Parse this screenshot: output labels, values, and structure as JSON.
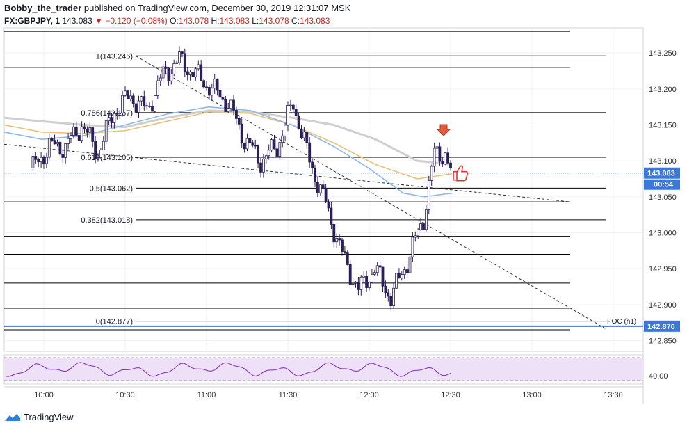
{
  "header": {
    "author": "Bobby_the_trader",
    "published": "published on TradingView.com, December 30, 2019 12:31:07 MSK"
  },
  "ohlc": {
    "symbol": "FX:GBPJPY, 1",
    "price": "143.083",
    "change": "−0.120 (−0.08%)",
    "o_label": "O:",
    "o": "143.078",
    "h_label": "H:",
    "h": "143.083",
    "l_label": "L:",
    "l": "143.078",
    "c_label": "C:",
    "c": "143.083"
  },
  "footer": {
    "brand": "TradingView"
  },
  "colors": {
    "candle": "#2b1f55",
    "fib": "#000000",
    "trend": "#333333",
    "ma_fast": "#8fb8e8",
    "ma_mid": "#e7c27a",
    "ma_slow": "#cfcfcf",
    "poc": "#3c78d8",
    "rsi_line": "#7b2cbf",
    "rsi_band": "#ede0f7",
    "marker_red": "#e05a3c",
    "price_badge": "#3c78d8"
  },
  "chart_data": {
    "type": "line",
    "title": "",
    "symbol": "GBPJPY",
    "timeframe": "1",
    "x_ticks": [
      "10:00",
      "10:30",
      "11:00",
      "11:30",
      "12:00",
      "12:30",
      "13:00",
      "13:30"
    ],
    "y_ticks": [
      "143.250",
      "143.200",
      "143.150",
      "143.100",
      "143.050",
      "143.000",
      "142.950",
      "142.900",
      "142.850"
    ],
    "ylim": [
      142.84,
      143.28
    ],
    "fib_levels": [
      {
        "ratio": "1",
        "label": "1(143.246)",
        "value": 143.246
      },
      {
        "ratio": "0.786",
        "label": "0.786(143.167)",
        "value": 143.167
      },
      {
        "ratio": "0.618",
        "label": "0.618(143.105)",
        "value": 143.105
      },
      {
        "ratio": "0.5",
        "label": "0.5(143.062)",
        "value": 143.062
      },
      {
        "ratio": "0.382",
        "label": "0.382(143.018)",
        "value": 143.018
      },
      {
        "ratio": "0",
        "label": "0(142.877)",
        "value": 142.877
      }
    ],
    "extra_levels": [
      143.28,
      143.23,
      143.043,
      142.995,
      142.97,
      142.93,
      142.895,
      142.865
    ],
    "poc": {
      "label": "POC (h1)",
      "value": 142.87
    },
    "last_price": {
      "value": "143.083",
      "countdown": "00:54"
    },
    "poc_badge": "142.870",
    "price_series": {
      "name": "",
      "x": [
        "09:56",
        "10:02",
        "10:08",
        "10:14",
        "10:20",
        "10:26",
        "10:32",
        "10:38",
        "10:44",
        "10:50",
        "10:56",
        "11:02",
        "11:08",
        "11:14",
        "11:20",
        "11:26",
        "11:32",
        "11:38",
        "11:44",
        "11:50",
        "11:56",
        "12:02",
        "12:08",
        "12:14",
        "12:20",
        "12:24",
        "12:28",
        "12:30"
      ],
      "values": [
        143.09,
        143.12,
        143.12,
        143.15,
        143.11,
        143.17,
        143.19,
        143.17,
        143.22,
        143.24,
        143.22,
        143.2,
        143.18,
        143.13,
        143.1,
        143.12,
        143.18,
        143.1,
        143.04,
        142.97,
        142.92,
        142.95,
        142.91,
        142.96,
        143.02,
        143.11,
        143.11,
        143.083
      ]
    },
    "rsi": {
      "level_label": "40.00"
    },
    "annotations": [
      "down-arrow",
      "thumbs-up"
    ]
  }
}
